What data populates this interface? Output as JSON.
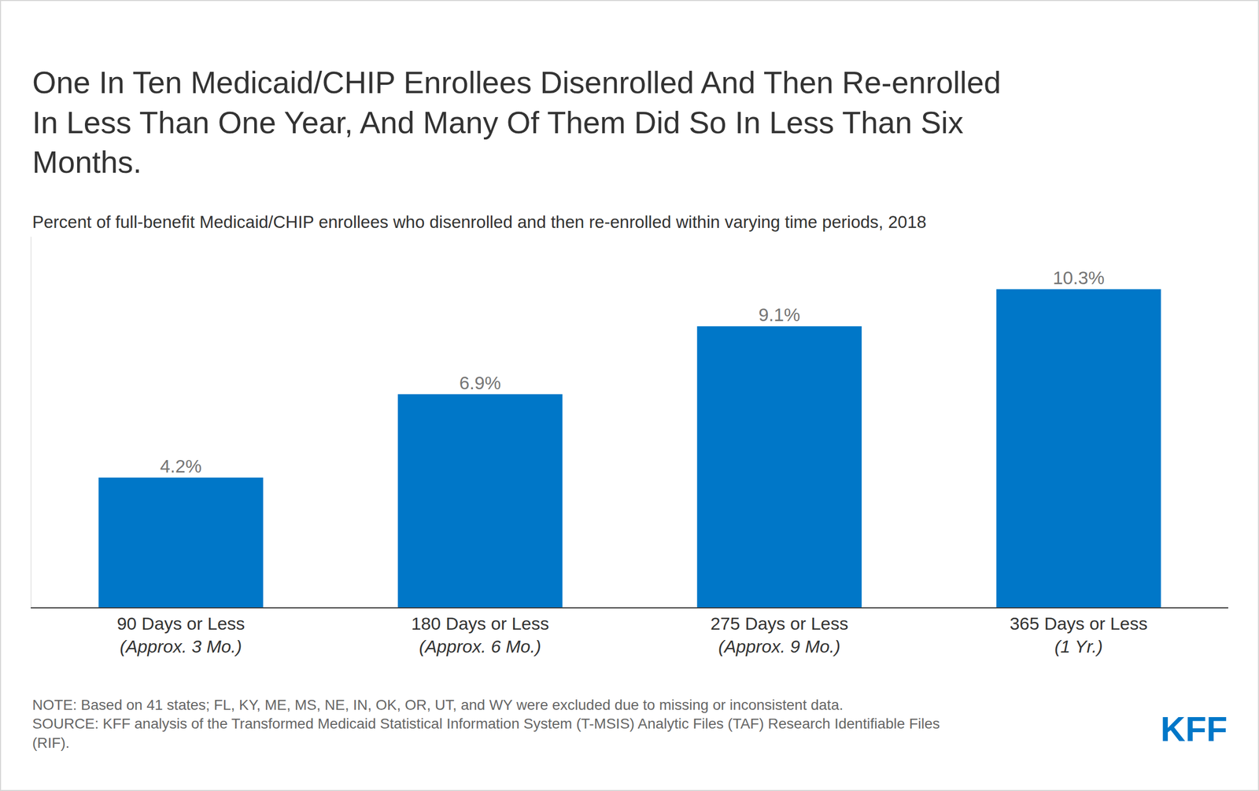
{
  "chart_data": {
    "type": "bar",
    "title": "One In Ten Medicaid/CHIP Enrollees Disenrolled And Then Re-enrolled In Less Than One Year, And Many Of Them Did So In Less Than Six Months.",
    "subtitle": "Percent of full-benefit Medicaid/CHIP enrollees who disenrolled and then re-enrolled within varying time periods, 2018",
    "categories": [
      "90 Days or Less",
      "180 Days or Less",
      "275 Days or Less",
      "365 Days or Less"
    ],
    "category_sublabels": [
      "(Approx. 3 Mo.)",
      "(Approx. 6 Mo.)",
      "(Approx. 9 Mo.)",
      "(1 Yr.)"
    ],
    "values": [
      4.2,
      6.9,
      9.1,
      10.3
    ],
    "value_labels": [
      "4.2%",
      "6.9%",
      "9.1%",
      "10.3%"
    ],
    "data_labels": true,
    "color": "#0077c8",
    "ylim": [
      0,
      12
    ],
    "grid": false,
    "tick_labels": "x",
    "note": "NOTE: Based on 41 states; FL, KY, ME, MS, NE, IN, OK, OR, UT, and WY were excluded due to missing or inconsistent data.",
    "source": "SOURCE: KFF analysis of the Transformed Medicaid Statistical Information System (T-MSIS) Analytic Files (TAF) Research Identifiable Files (RIF).",
    "logo": "KFF"
  }
}
